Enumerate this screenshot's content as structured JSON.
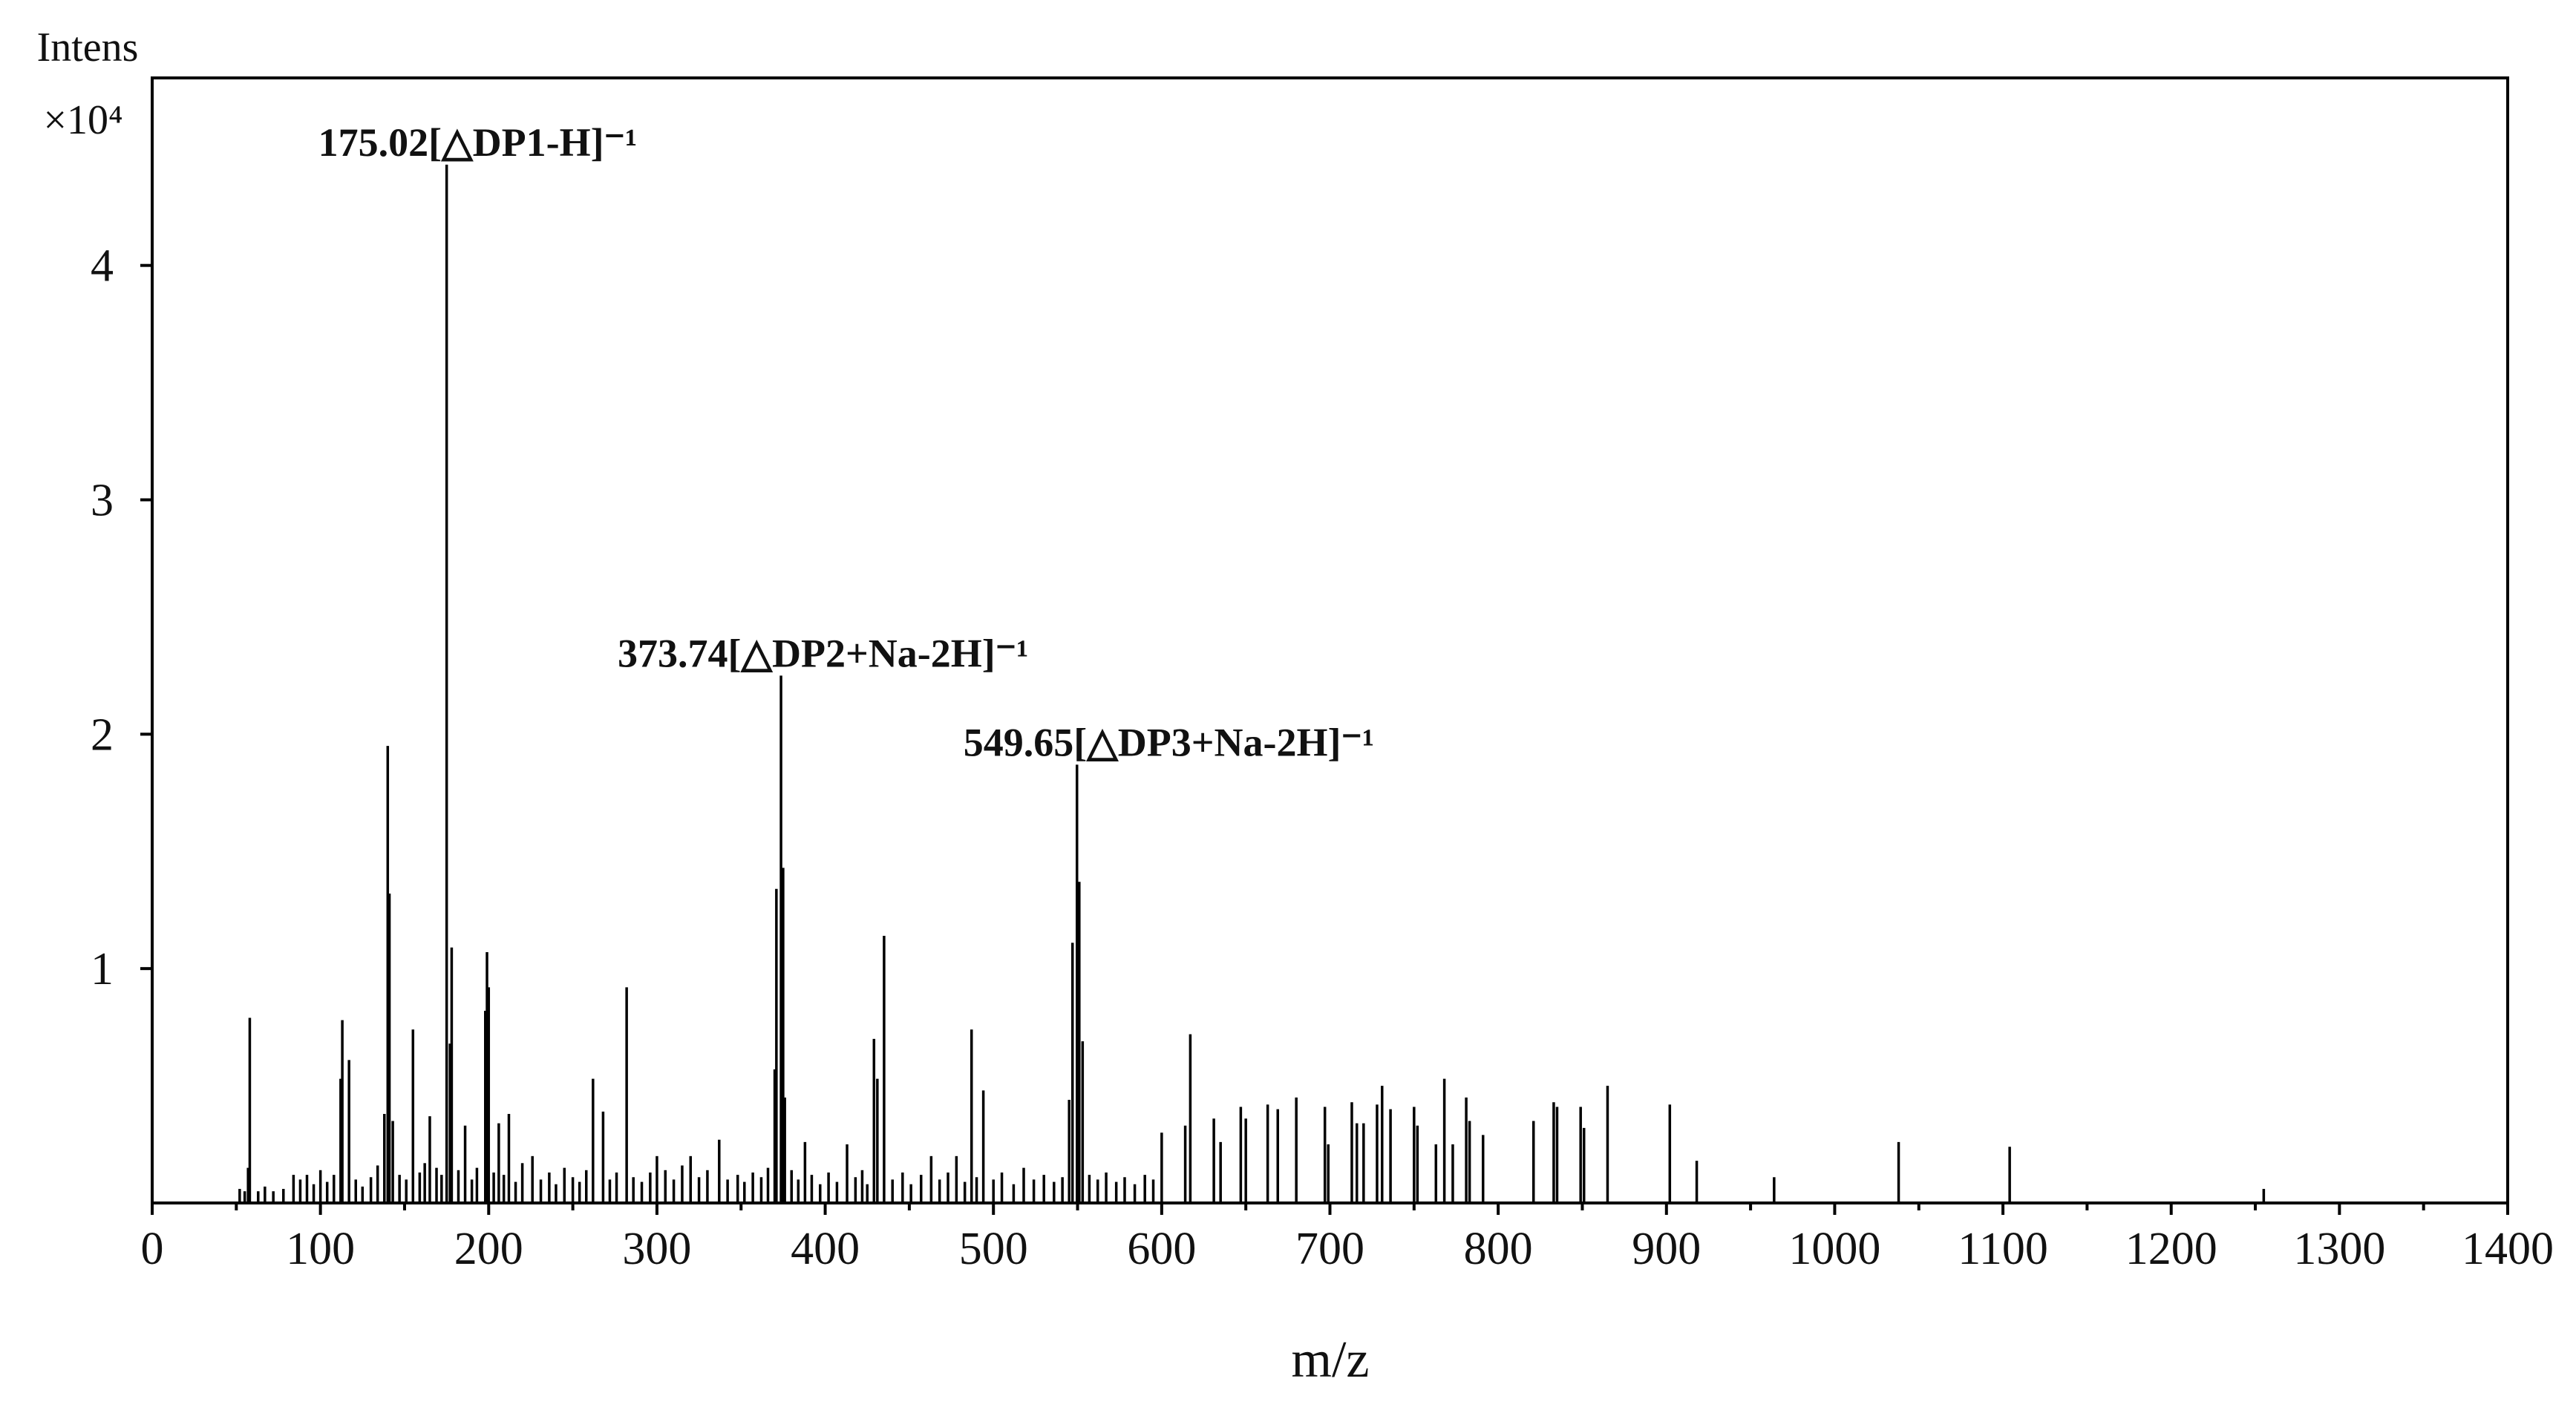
{
  "chart_data": {
    "type": "stem",
    "x_label": "m/z",
    "y_label": "Intens",
    "y_multiplier": "×10⁴",
    "color": "#000000",
    "xlim": [
      0,
      1400
    ],
    "ylim": [
      0,
      4.8
    ],
    "xticks": [
      0,
      100,
      200,
      300,
      400,
      500,
      600,
      700,
      800,
      900,
      1000,
      1100,
      1200,
      1300,
      1400
    ],
    "xminorticks": [
      50,
      150,
      250,
      350,
      450,
      550,
      650,
      750,
      850,
      950,
      1050,
      1150,
      1250,
      1350
    ],
    "yticks": [
      1,
      2,
      3,
      4
    ],
    "annotations": [
      "175.02[△DP1-H]⁻¹",
      "373.74[△DP2+Na-2H]⁻¹",
      "549.65[△DP3+Na-2H]⁻¹"
    ],
    "x": [
      52,
      55,
      57,
      58,
      63,
      67,
      72,
      78,
      84,
      88,
      92,
      96,
      100,
      104,
      108,
      112,
      113,
      117,
      121,
      125,
      130,
      134,
      138,
      140,
      141,
      143,
      147,
      151,
      155,
      159,
      162,
      165,
      169,
      172,
      175.02,
      177,
      178,
      182,
      186,
      190,
      193,
      198,
      199,
      200,
      203,
      206,
      209,
      212,
      216,
      220,
      226,
      231,
      236,
      240,
      245,
      250,
      254,
      258,
      262,
      268,
      272,
      276,
      282,
      286,
      291,
      296,
      300,
      305,
      310,
      315,
      320,
      325,
      330,
      337,
      342,
      348,
      352,
      357,
      362,
      366,
      370,
      371,
      373.74,
      375,
      376,
      380,
      384,
      388,
      392,
      397,
      402,
      407,
      413,
      418,
      422,
      425,
      429,
      431,
      435,
      440,
      446,
      451,
      457,
      463,
      468,
      473,
      478,
      483,
      487,
      490,
      494,
      500,
      505,
      512,
      518,
      524,
      530,
      536,
      541,
      545,
      547,
      549.65,
      551,
      553,
      557,
      562,
      567,
      573,
      578,
      584,
      590,
      595,
      600,
      614,
      617,
      631,
      635,
      647,
      650,
      663,
      669,
      680,
      697,
      699,
      713,
      716,
      720,
      728,
      731,
      736,
      750,
      752,
      763,
      768,
      773,
      781,
      783,
      791,
      821,
      833,
      835,
      849,
      851,
      865,
      902,
      918,
      964,
      1038,
      1104,
      1255
    ],
    "values": [
      0.06,
      0.05,
      0.15,
      0.79,
      0.05,
      0.07,
      0.05,
      0.06,
      0.12,
      0.1,
      0.12,
      0.08,
      0.14,
      0.09,
      0.12,
      0.53,
      0.78,
      0.61,
      0.1,
      0.07,
      0.11,
      0.16,
      0.38,
      1.95,
      1.32,
      0.35,
      0.12,
      0.1,
      0.74,
      0.13,
      0.17,
      0.37,
      0.15,
      0.12,
      4.43,
      0.68,
      1.09,
      0.14,
      0.33,
      0.1,
      0.15,
      0.82,
      1.07,
      0.92,
      0.13,
      0.34,
      0.12,
      0.38,
      0.09,
      0.17,
      0.2,
      0.1,
      0.13,
      0.08,
      0.15,
      0.11,
      0.09,
      0.14,
      0.53,
      0.39,
      0.1,
      0.13,
      0.92,
      0.11,
      0.09,
      0.13,
      0.2,
      0.14,
      0.1,
      0.16,
      0.2,
      0.11,
      0.14,
      0.27,
      0.1,
      0.12,
      0.09,
      0.13,
      0.11,
      0.15,
      0.57,
      1.34,
      2.25,
      1.43,
      0.45,
      0.14,
      0.1,
      0.26,
      0.12,
      0.08,
      0.13,
      0.09,
      0.25,
      0.11,
      0.14,
      0.08,
      0.7,
      0.53,
      1.14,
      0.1,
      0.13,
      0.08,
      0.12,
      0.2,
      0.1,
      0.13,
      0.2,
      0.09,
      0.74,
      0.11,
      0.48,
      0.1,
      0.13,
      0.08,
      0.15,
      0.1,
      0.12,
      0.09,
      0.11,
      0.44,
      1.11,
      1.87,
      1.37,
      0.69,
      0.12,
      0.1,
      0.13,
      0.09,
      0.11,
      0.08,
      0.12,
      0.1,
      0.3,
      0.33,
      0.72,
      0.36,
      0.26,
      0.41,
      0.36,
      0.42,
      0.4,
      0.45,
      0.41,
      0.25,
      0.43,
      0.34,
      0.34,
      0.42,
      0.5,
      0.4,
      0.41,
      0.33,
      0.25,
      0.53,
      0.25,
      0.45,
      0.35,
      0.29,
      0.35,
      0.43,
      0.41,
      0.41,
      0.32,
      0.5,
      0.42,
      0.18,
      0.11,
      0.26,
      0.24,
      0.06
    ]
  }
}
